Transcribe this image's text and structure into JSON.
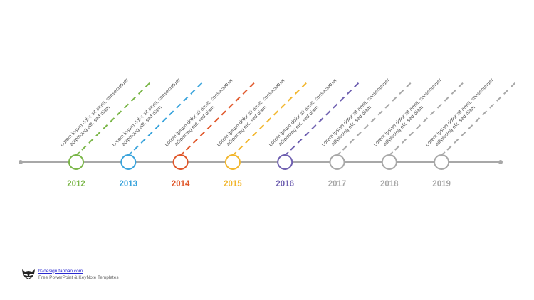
{
  "timeline": {
    "milestones": [
      {
        "year": "2012",
        "color": "#7ab648",
        "text_line1": "Lorem ipsum dolor sit amet, consectetuer",
        "text_line2": "adipiscing elit, sed diam"
      },
      {
        "year": "2013",
        "color": "#3aa4dc",
        "text_line1": "Lorem ipsum dolor sit amet, consectetuer",
        "text_line2": "adipiscing elit, sed diam"
      },
      {
        "year": "2014",
        "color": "#e0572a",
        "text_line1": "Lorem ipsum dolor sit amet, consectetuer",
        "text_line2": "adipiscing elit, sed diam"
      },
      {
        "year": "2015",
        "color": "#f2b62c",
        "text_line1": "Lorem ipsum dolor sit amet, consectetuer",
        "text_line2": "adipiscing elit, sed diam"
      },
      {
        "year": "2016",
        "color": "#6e5fb0",
        "text_line1": "Lorem ipsum dolor sit amet, consectetuer",
        "text_line2": "adipiscing elit, sed diam"
      },
      {
        "year": "2017",
        "color": "#a8a8a8",
        "text_line1": "Lorem ipsum dolor sit amet, consectetuer",
        "text_line2": "adipiscing elit, sed diam"
      },
      {
        "year": "2018",
        "color": "#a8a8a8",
        "text_line1": "Lorem ipsum dolor sit amet, consectetuer",
        "text_line2": "adipiscing elit, sed diam"
      },
      {
        "year": "2019",
        "color": "#a8a8a8",
        "text_line1": "Lorem ipsum dolor sit amet, consectetuer",
        "text_line2": "adipiscing elit, sed diam"
      }
    ],
    "axis_color": "#a8a8a8"
  },
  "footer": {
    "logo_icon": "raccoon-icon",
    "link": "h2design.taobao.com",
    "tagline": "Free PowerPoint & KeyNote Templates"
  }
}
